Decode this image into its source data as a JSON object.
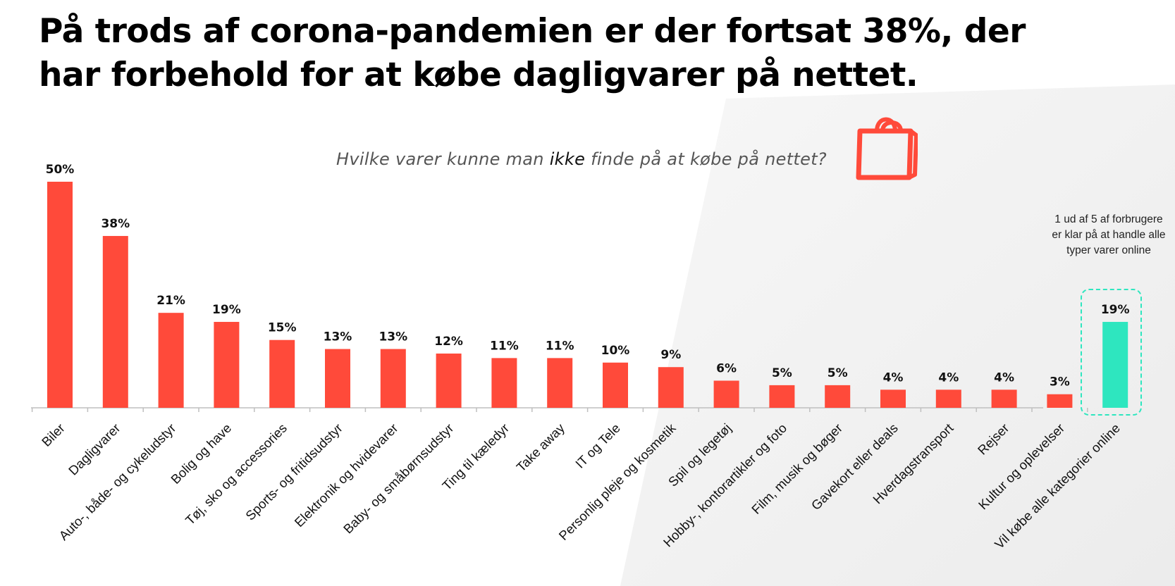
{
  "headline": "På trods af corona-pandemien er der fortsat 38%, der har forbehold for at købe dagligvarer på nettet.",
  "subtitle": {
    "before": "Hvilke varer kunne man ",
    "emphasis": "ikke",
    "after": " finde på at købe på nettet?"
  },
  "callout": "1 ud af 5 af forbrugere er klar på at handle alle typer varer online",
  "icons": {
    "shopping_bag": "shopping-bag-icon"
  },
  "colors": {
    "bar": "#ff4a3a",
    "highlight": "#2ee6bf",
    "axis": "#bfbfbf",
    "text": "#111111"
  },
  "chart_data": {
    "type": "bar",
    "title": "Hvilke varer kunne man ikke finde på at købe på nettet?",
    "categories": [
      "Biler",
      "Dagligvarer",
      "Auto-, både- og cykeludstyr",
      "Bolig og have",
      "Tøj, sko og accessories",
      "Sports- og fritidsudstyr",
      "Elektronik og hvidevarer",
      "Baby- og småbørnsudstyr",
      "Ting til kæledyr",
      "Take away",
      "IT og Tele",
      "Personlig pleje og kosmetik",
      "Spil og legetøj",
      "Hobby-, kontorartikler og foto",
      "Film, musik og bøger",
      "Gavekort eller deals",
      "Hverdagstransport",
      "Rejser",
      "Kultur og oplevelser",
      "Vil købe alle kategorier online"
    ],
    "values": [
      50,
      38,
      21,
      19,
      15,
      13,
      13,
      12,
      11,
      11,
      10,
      9,
      6,
      5,
      5,
      4,
      4,
      4,
      3,
      19
    ],
    "value_labels": [
      "50%",
      "38%",
      "21%",
      "19%",
      "15%",
      "13%",
      "13%",
      "12%",
      "11%",
      "11%",
      "10%",
      "9%",
      "6%",
      "5%",
      "5%",
      "4%",
      "4%",
      "4%",
      "3%",
      "19%"
    ],
    "highlighted_category": "Vil købe alle kategorier online",
    "ylim": [
      0,
      50
    ],
    "grid": false,
    "legend": "none"
  }
}
